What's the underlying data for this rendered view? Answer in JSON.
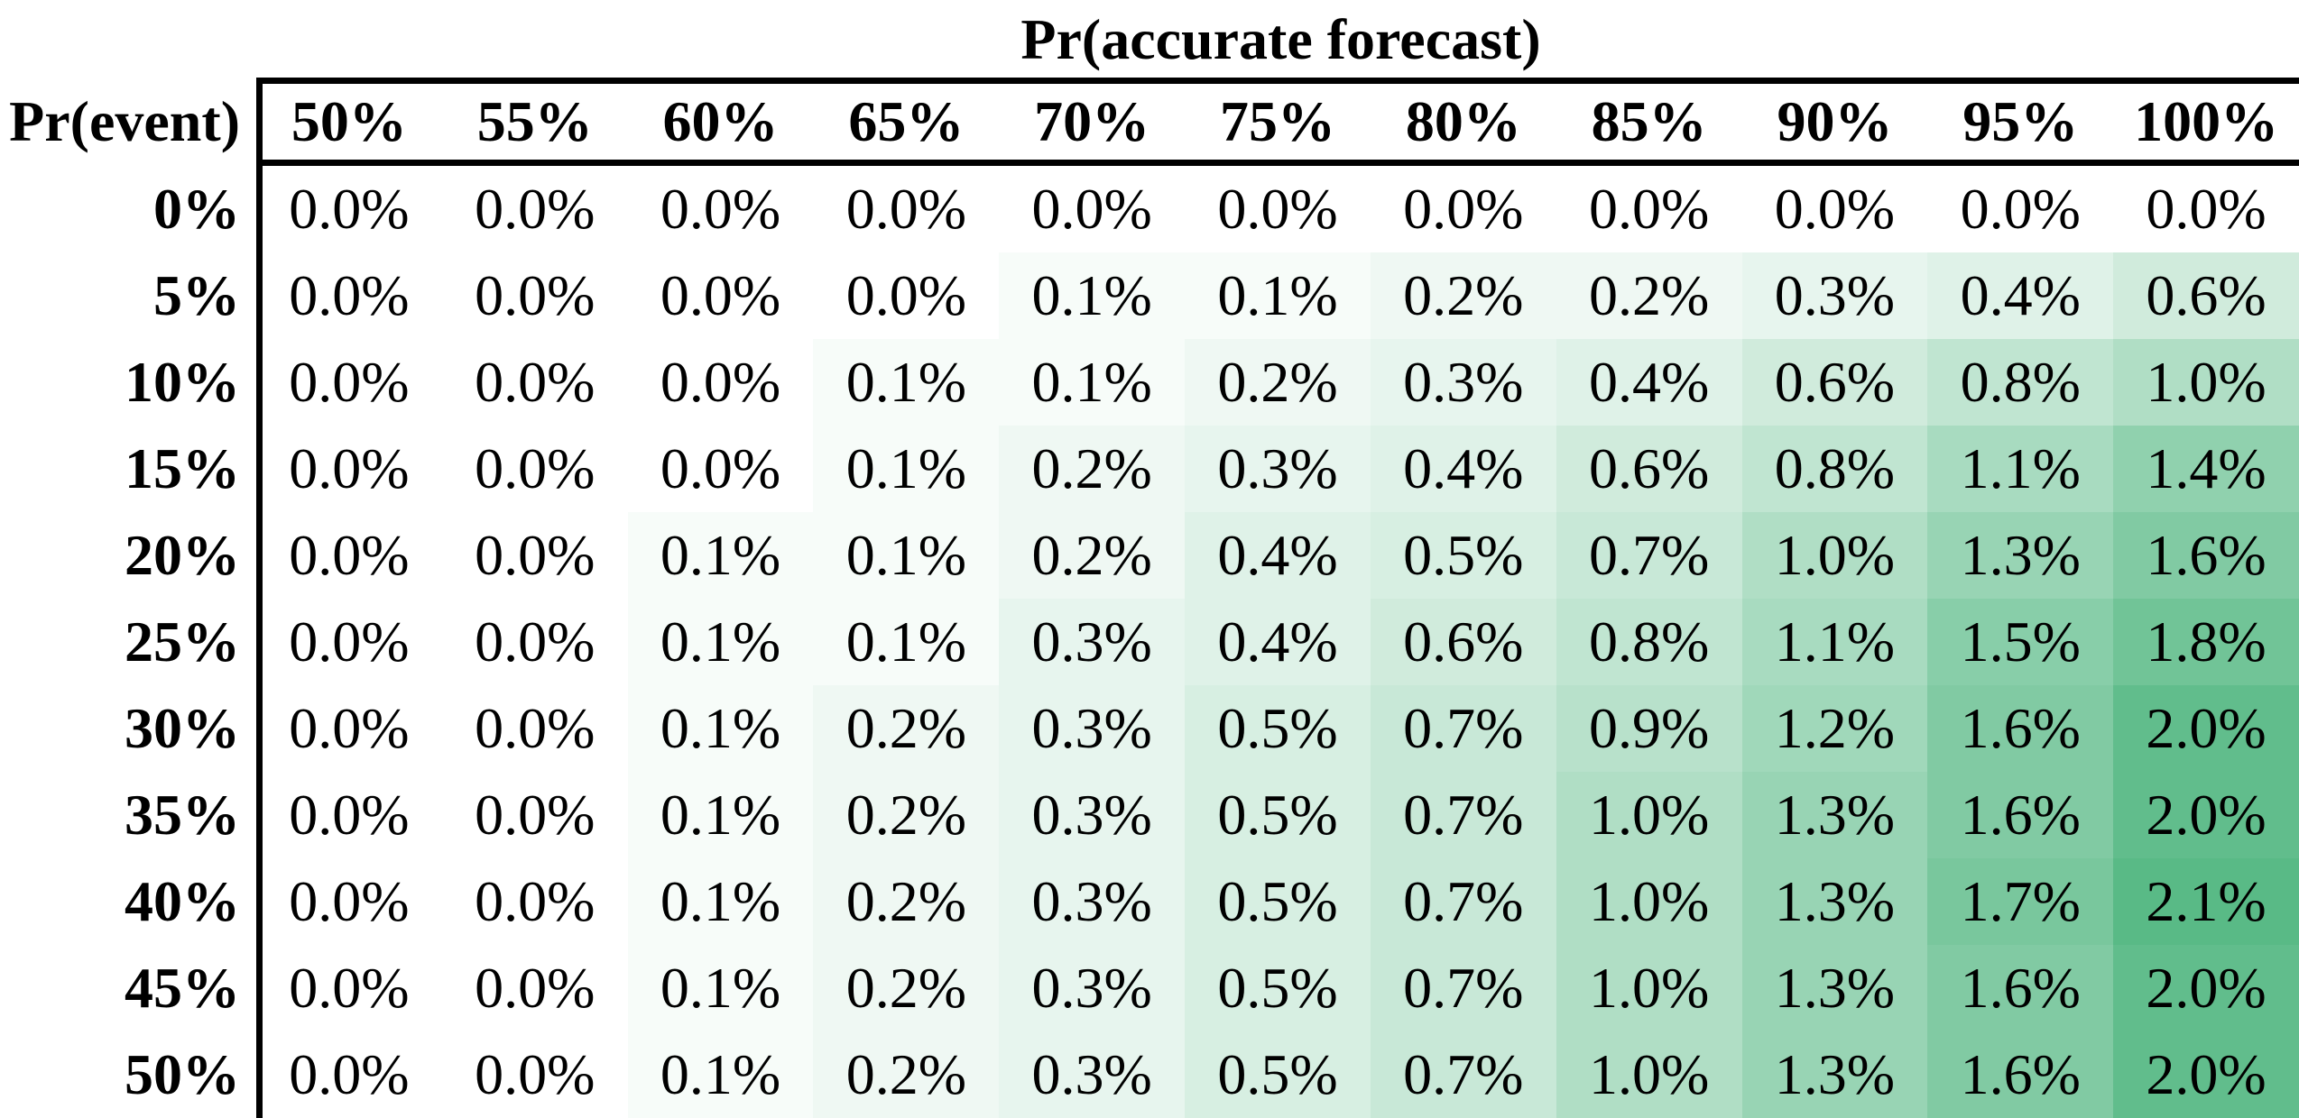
{
  "chart_data": {
    "type": "heatmap",
    "title": "Pr(accurate forecast)",
    "col_axis_label": "Pr(accurate forecast)",
    "row_axis_label": "Pr(event)",
    "columns": [
      "50%",
      "55%",
      "60%",
      "65%",
      "70%",
      "75%",
      "80%",
      "85%",
      "90%",
      "95%",
      "100%"
    ],
    "rows": [
      "0%",
      "5%",
      "10%",
      "15%",
      "20%",
      "25%",
      "30%",
      "35%",
      "40%",
      "45%",
      "50%"
    ],
    "cell_suffix": "%",
    "decimals": 1,
    "values_percent": [
      [
        0.0,
        0.0,
        0.0,
        0.0,
        0.0,
        0.0,
        0.0,
        0.0,
        0.0,
        0.0,
        0.0
      ],
      [
        0.0,
        0.0,
        0.0,
        0.0,
        0.1,
        0.1,
        0.2,
        0.2,
        0.3,
        0.4,
        0.6
      ],
      [
        0.0,
        0.0,
        0.0,
        0.1,
        0.1,
        0.2,
        0.3,
        0.4,
        0.6,
        0.8,
        1.0
      ],
      [
        0.0,
        0.0,
        0.0,
        0.1,
        0.2,
        0.3,
        0.4,
        0.6,
        0.8,
        1.1,
        1.4
      ],
      [
        0.0,
        0.0,
        0.1,
        0.1,
        0.2,
        0.4,
        0.5,
        0.7,
        1.0,
        1.3,
        1.6
      ],
      [
        0.0,
        0.0,
        0.1,
        0.1,
        0.3,
        0.4,
        0.6,
        0.8,
        1.1,
        1.5,
        1.8
      ],
      [
        0.0,
        0.0,
        0.1,
        0.2,
        0.3,
        0.5,
        0.7,
        0.9,
        1.2,
        1.6,
        2.0
      ],
      [
        0.0,
        0.0,
        0.1,
        0.2,
        0.3,
        0.5,
        0.7,
        1.0,
        1.3,
        1.6,
        2.0
      ],
      [
        0.0,
        0.0,
        0.1,
        0.2,
        0.3,
        0.5,
        0.7,
        1.0,
        1.3,
        1.7,
        2.1
      ],
      [
        0.0,
        0.0,
        0.1,
        0.2,
        0.3,
        0.5,
        0.7,
        1.0,
        1.3,
        1.6,
        2.0
      ],
      [
        0.0,
        0.0,
        0.1,
        0.2,
        0.3,
        0.5,
        0.7,
        1.0,
        1.3,
        1.6,
        2.0
      ]
    ],
    "color_scale": {
      "min_value": 0,
      "max_value": 2.1,
      "min_color": "#FFFFFF",
      "max_color": "#59BA86"
    },
    "border_color": "#000000",
    "legend": "none",
    "grid": "off"
  }
}
